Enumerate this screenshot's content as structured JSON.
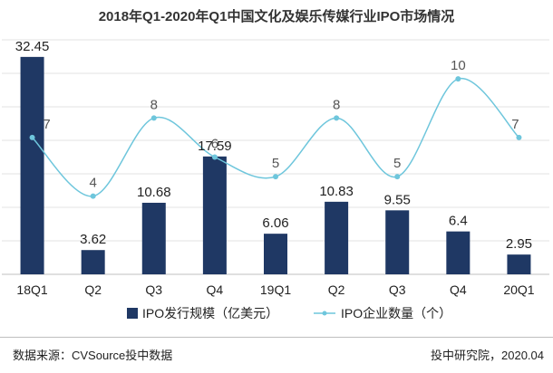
{
  "chart_data": {
    "type": "bar",
    "title": "2018年Q1-2020年Q1中国文化及娱乐传媒行业IPO市场情况",
    "categories": [
      "18Q1",
      "Q2",
      "Q3",
      "Q4",
      "19Q1",
      "Q2",
      "Q3",
      "Q4",
      "20Q1"
    ],
    "series": [
      {
        "name": "IPO发行规模（亿美元）",
        "type": "bar",
        "color": "#1f3864",
        "values": [
          32.45,
          3.62,
          10.68,
          17.59,
          6.06,
          10.83,
          9.55,
          6.4,
          2.95
        ],
        "labels": [
          "32.45",
          "3.62",
          "10.68",
          "17.59",
          "6.06",
          "10.83",
          "9.55",
          "6.4",
          "2.95"
        ]
      },
      {
        "name": "IPO企业数量（个）",
        "type": "line",
        "color": "#6ec6dc",
        "values": [
          7,
          4,
          8,
          6,
          5,
          8,
          5,
          10,
          7
        ],
        "labels": [
          "7",
          "4",
          "8",
          "6",
          "5",
          "8",
          "5",
          "10",
          "7"
        ]
      }
    ],
    "ylim_bar": [
      0,
      35
    ],
    "ylim_line": [
      0,
      12
    ],
    "grid": true,
    "legend": "bottom-center"
  },
  "footer": {
    "source": "数据来源：CVSource投中数据",
    "brand": "投中研究院，2020.04"
  }
}
